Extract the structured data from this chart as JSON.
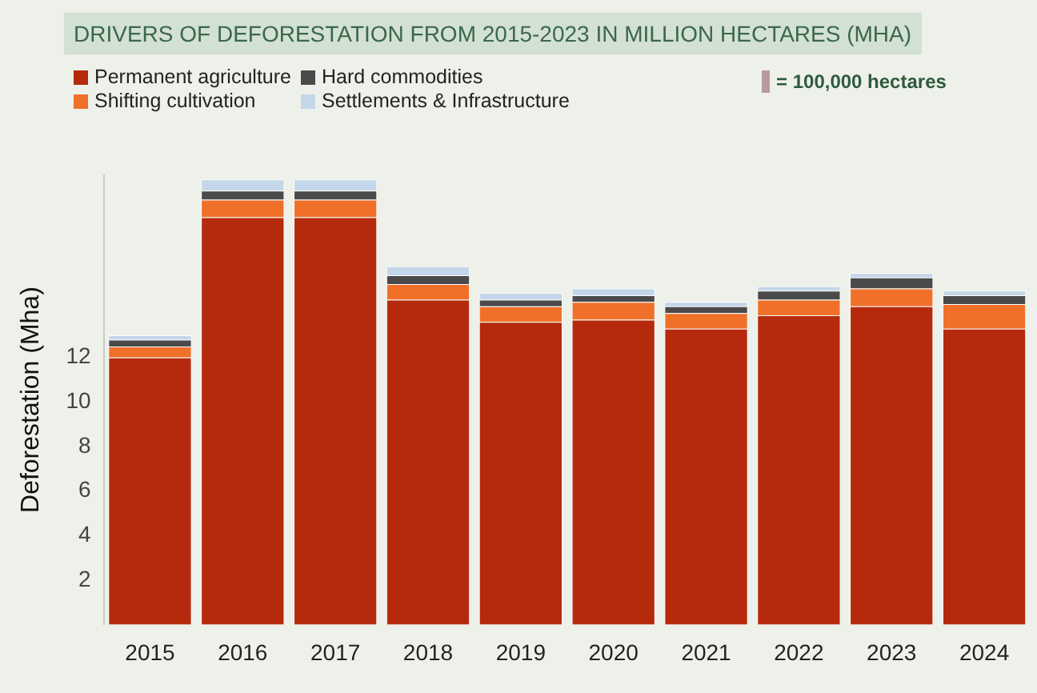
{
  "chart_data": {
    "type": "bar",
    "title": "DRIVERS OF DEFORESTATION FROM 2015-2023 IN MILLION HECTARES (MHA)",
    "ylabel": "Deforestation (Mha)",
    "categories": [
      "2015",
      "2016",
      "2017",
      "2018",
      "2019",
      "2020",
      "2021",
      "2022",
      "2023",
      "2024"
    ],
    "stacked": true,
    "series": [
      {
        "name": "Permanent agriculture",
        "color": "#b52a0c",
        "values": [
          12.0,
          18.3,
          18.3,
          14.6,
          13.6,
          13.7,
          13.3,
          13.9,
          14.3,
          13.3
        ]
      },
      {
        "name": "Shifting cultivation",
        "color": "#f0702a",
        "values": [
          0.5,
          0.8,
          0.8,
          0.7,
          0.7,
          0.8,
          0.7,
          0.7,
          0.8,
          1.1
        ]
      },
      {
        "name": "Hard commodities",
        "color": "#4a4a4a",
        "values": [
          0.3,
          0.4,
          0.4,
          0.4,
          0.3,
          0.3,
          0.3,
          0.4,
          0.5,
          0.4
        ]
      },
      {
        "name": "Settlements & Infrastructure",
        "color": "#c4d6ea",
        "values": [
          0.2,
          0.5,
          0.5,
          0.4,
          0.3,
          0.3,
          0.2,
          0.2,
          0.2,
          0.2
        ]
      }
    ],
    "ylim": [
      0,
      20.2
    ],
    "yticks": [
      2,
      4,
      6,
      8,
      10,
      12
    ],
    "grid": false,
    "legend": "top left",
    "annotations": [
      "= 100,000 hectares"
    ]
  }
}
